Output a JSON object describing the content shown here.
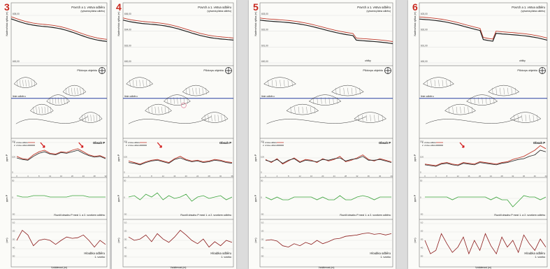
{
  "colors": {
    "first_layer": "#c0392b",
    "second_layer": "#222222",
    "difference": "#3aa33a",
    "depth": "#8b1a1a",
    "number": "#c8281e"
  },
  "panels": [
    {
      "number": "3",
      "labels": {
        "surface": "Povrch a 1. vrstva odběru",
        "surface_sub": "(vytvarná plátna odběru)",
        "plan": "Půdorys objektu",
        "line": "linie odběru",
        "content": "Obsah P",
        "difference": "Rozdíl obsahu P mezi 1. a 2. vzorkem odběru",
        "depth": "Hloubka odběru",
        "depth_sub": "1. vzorku"
      },
      "axes": {
        "elev": "Nadmořská výška (m)",
        "ppm": "ppm P",
        "ppm2": "ppm P",
        "cm": "(cm)"
      },
      "legend": [
        "1. vrstva odběru",
        "2. vrstva odběru"
      ],
      "ticks_x": [
        "0",
        "4",
        "8",
        "12",
        "16",
        "20",
        "24",
        "28",
        "32"
      ],
      "ticks_ppm": [
        "200",
        "100",
        "0"
      ],
      "ticks_diff": [
        "50",
        "0",
        "-50"
      ],
      "ticks_depth": [
        "-10",
        "-20",
        "-30",
        "-40",
        "-50"
      ],
      "ticks_elev": [
        "605,00",
        "600,00"
      ],
      "xlabel": "Vzdálenost (m)",
      "arrows": 2,
      "pink": false,
      "chart_data": {
        "type": "line",
        "x": [
          0,
          2,
          4,
          6,
          8,
          10,
          12,
          14,
          16,
          18,
          20,
          22,
          24,
          26,
          28,
          30,
          32
        ],
        "series": [
          {
            "name": "1. vrstva odběru",
            "values": [
              110,
              95,
              90,
              120,
              140,
              150,
              130,
              125,
              140,
              135,
              150,
              160,
              140,
              120,
              110,
              115,
              100
            ]
          },
          {
            "name": "2. vrstva odběru",
            "values": [
              100,
              90,
              85,
              110,
              130,
              140,
              125,
              120,
              135,
              130,
              140,
              150,
              130,
              115,
              105,
              110,
              95
            ]
          }
        ],
        "difference": [
          10,
          5,
          5,
          10,
          10,
          10,
          5,
          5,
          5,
          5,
          10,
          10,
          10,
          5,
          5,
          5,
          5
        ],
        "depth": [
          -30,
          -15,
          -22,
          -38,
          -30,
          -28,
          -30,
          -36,
          -30,
          -25,
          -27,
          -26,
          -22,
          -30,
          -40,
          -30,
          -36
        ]
      }
    },
    {
      "number": "4",
      "labels": {
        "surface": "Povrch a 1. vrstva odběru",
        "surface_sub": "(vytvarná plátna odběru)",
        "plan": "Půdorys objektu",
        "line": "linie odběru",
        "content": "Obsah P",
        "difference": "Rozdíl obsahu P mezi 1. a 2. vzorkem odběru",
        "depth": "Hloubka odběru",
        "depth_sub": "1. vzorku"
      },
      "axes": {
        "elev": "Nadmořská výška (m)",
        "ppm": "ppm P",
        "ppm2": "ppm P",
        "cm": "(cm)"
      },
      "legend": [
        "1. vrstva odběru",
        "2. vrstva odběru"
      ],
      "ticks_x": [
        "0",
        "4",
        "8",
        "12",
        "16",
        "20",
        "24",
        "28",
        "32",
        "36"
      ],
      "ticks_ppm": [
        "200",
        "100",
        "0"
      ],
      "ticks_diff": [
        "50",
        "0",
        "-50"
      ],
      "ticks_depth": [
        "-10",
        "-20",
        "-30",
        "-40",
        "-50"
      ],
      "ticks_elev": [
        "606,00",
        "604,00",
        "602,00",
        "600,00"
      ],
      "xlabel": "Vzdálenost (m)",
      "arrows": 1,
      "pink": true,
      "chart_data": {
        "type": "line",
        "x": [
          0,
          2,
          4,
          6,
          8,
          10,
          12,
          14,
          16,
          18,
          20,
          22,
          24,
          26,
          28,
          30,
          32,
          34,
          36
        ],
        "series": [
          {
            "name": "1. vrstva odběru",
            "values": [
              80,
              70,
              60,
              75,
              85,
              90,
              80,
              70,
              95,
              110,
              90,
              80,
              85,
              75,
              80,
              90,
              85,
              75,
              70
            ]
          },
          {
            "name": "2. vrstva odběru",
            "values": [
              70,
              65,
              55,
              70,
              80,
              85,
              75,
              65,
              90,
              100,
              85,
              75,
              80,
              70,
              75,
              85,
              80,
              70,
              65
            ]
          }
        ],
        "difference": [
          5,
          10,
          -5,
          15,
          5,
          20,
          -5,
          10,
          0,
          5,
          15,
          -10,
          5,
          10,
          0,
          5,
          10,
          -5,
          5
        ],
        "depth": [
          -25,
          -30,
          -28,
          -22,
          -32,
          -20,
          -28,
          -33,
          -25,
          -15,
          -22,
          -30,
          -35,
          -28,
          -40,
          -32,
          -38,
          -30,
          -33
        ]
      }
    },
    {
      "number": "5",
      "labels": {
        "surface": "Povrch a 1. vrstva odběru",
        "surface_sub": "(vytvarná plátna odběru)",
        "plan": "Půdorys objektu",
        "line": "linie odběru",
        "content": "Obsah P",
        "difference": "Rozdíl obsahu P mezi 1. a 2. vzorkem odběru",
        "depth": "Hloubka odběru",
        "depth_sub": "1. vzorku",
        "extra": "uhlíky"
      },
      "axes": {
        "elev": "Nadmořská výška (m)",
        "ppm": "ppm P",
        "ppm2": "ppm P",
        "cm": "(cm)"
      },
      "legend": [
        "1. vrstva odběru",
        "2. vrstva odběru"
      ],
      "ticks_x": [
        "0",
        "4",
        "8",
        "12",
        "16",
        "20",
        "24",
        "28",
        "32",
        "36",
        "40",
        "44"
      ],
      "ticks_ppm": [
        "200",
        "100",
        "0"
      ],
      "ticks_diff": [
        "50",
        "0",
        "-50"
      ],
      "ticks_depth": [
        "-10",
        "-20",
        "-30",
        "-40",
        "-50"
      ],
      "ticks_elev": [
        "603,00",
        "602,00",
        "601,00",
        "600,00"
      ],
      "xlabel": "Vzdálenost (m)",
      "arrows": 0,
      "pink": false,
      "chart_data": {
        "type": "line",
        "x": [
          0,
          2,
          4,
          6,
          8,
          10,
          12,
          14,
          16,
          18,
          20,
          22,
          24,
          26,
          28,
          30,
          32,
          34,
          36,
          38,
          40,
          42,
          44
        ],
        "series": [
          {
            "name": "1. vrstva odběru",
            "values": [
              90,
              70,
              95,
              60,
              80,
              100,
              75,
              90,
              85,
              70,
              95,
              80,
              90,
              110,
              75,
              85,
              100,
              120,
              90,
              80,
              95,
              85,
              75
            ]
          },
          {
            "name": "2. vrstva odběru",
            "values": [
              85,
              75,
              90,
              65,
              85,
              95,
              70,
              85,
              80,
              75,
              90,
              85,
              95,
              100,
              80,
              90,
              95,
              110,
              85,
              85,
              90,
              80,
              70
            ]
          }
        ],
        "difference": [
          5,
          -5,
          5,
          -5,
          -5,
          5,
          5,
          5,
          5,
          -5,
          5,
          -5,
          -5,
          10,
          -5,
          -5,
          5,
          10,
          5,
          -5,
          5,
          5,
          5
        ],
        "depth": [
          -30,
          -29,
          -31,
          -38,
          -40,
          -35,
          -38,
          -33,
          -36,
          -30,
          -35,
          -32,
          -28,
          -27,
          -24,
          -23,
          -22,
          -20,
          -19,
          -21,
          -20,
          -22,
          -20
        ]
      }
    },
    {
      "number": "6",
      "labels": {
        "surface": "Povrch a 1. vrstva odběru",
        "surface_sub": "(vytvarná plátna odběru)",
        "plan": "Půdorys objektu",
        "line": "linie odběru",
        "content": "Obsah P",
        "difference": "Rozdíl obsahu P mezi 1. a 2. vzorkem odběru",
        "depth": "Hloubka odběru",
        "depth_sub": "1. vzorku",
        "extra": "uhlíky"
      },
      "axes": {
        "elev": "Nadmořská výška (m)",
        "ppm": "ppm P",
        "ppm2": "ppm P",
        "cm": "(cm)"
      },
      "legend": [
        "1. vrstva odběru",
        "2. vrstva odběru"
      ],
      "ticks_x": [
        "0",
        "4",
        "8",
        "12",
        "16",
        "20",
        "24",
        "28",
        "32",
        "36",
        "40",
        "44"
      ],
      "ticks_ppm": [
        "200",
        "100",
        "0"
      ],
      "ticks_diff": [
        "50",
        "0",
        "-50"
      ],
      "ticks_depth": [
        "-10",
        "-20",
        "-30",
        "-40",
        "-50"
      ],
      "ticks_elev": [
        "603,00",
        "602,00",
        "601,00",
        "600,00"
      ],
      "xlabel": "Vzdálenost (m)",
      "arrows": 1,
      "pink": false,
      "chart_data": {
        "type": "line",
        "x": [
          0,
          2,
          4,
          6,
          8,
          10,
          12,
          14,
          16,
          18,
          20,
          22,
          24,
          26,
          28,
          30,
          32,
          34,
          36,
          38,
          40,
          42,
          44
        ],
        "series": [
          {
            "name": "1. vrstva odběru",
            "values": [
              60,
              55,
              50,
              65,
              70,
              60,
              55,
              70,
              65,
              60,
              75,
              70,
              65,
              60,
              70,
              75,
              90,
              100,
              110,
              130,
              150,
              180,
              160
            ]
          },
          {
            "name": "2. vrstva odběru",
            "values": [
              55,
              50,
              45,
              60,
              65,
              55,
              50,
              65,
              60,
              55,
              70,
              65,
              60,
              55,
              65,
              70,
              80,
              90,
              95,
              110,
              120,
              150,
              140
            ]
          }
        ],
        "difference": [
          5,
          5,
          5,
          5,
          5,
          -5,
          5,
          5,
          5,
          5,
          5,
          5,
          -5,
          5,
          -5,
          -5,
          -30,
          -10,
          10,
          5,
          5,
          -5,
          5
        ],
        "depth": [
          -30,
          -50,
          -45,
          -20,
          -35,
          -48,
          -40,
          -25,
          -50,
          -30,
          -45,
          -20,
          -38,
          -50,
          -25,
          -40,
          -30,
          -48,
          -22,
          -35,
          -45,
          -28,
          -40
        ]
      }
    }
  ]
}
